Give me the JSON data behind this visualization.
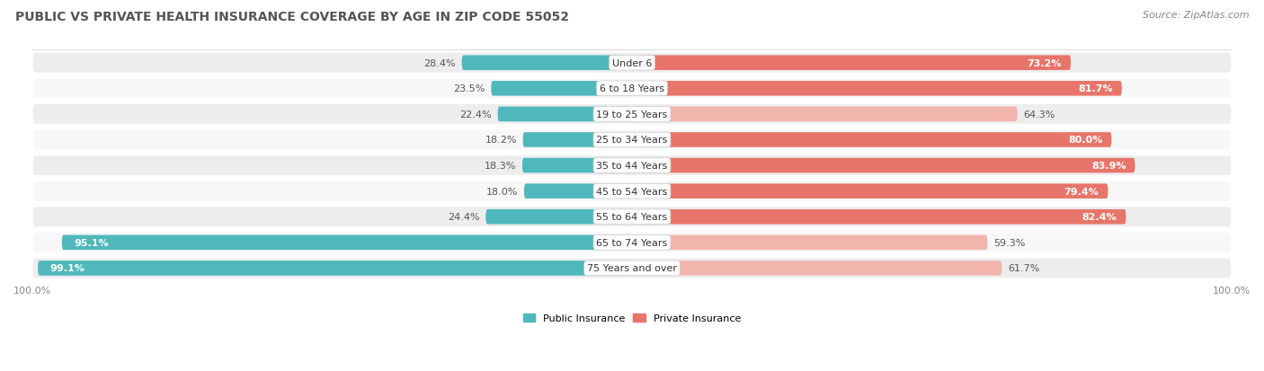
{
  "title": "PUBLIC VS PRIVATE HEALTH INSURANCE COVERAGE BY AGE IN ZIP CODE 55052",
  "source": "Source: ZipAtlas.com",
  "categories": [
    "Under 6",
    "6 to 18 Years",
    "19 to 25 Years",
    "25 to 34 Years",
    "35 to 44 Years",
    "45 to 54 Years",
    "55 to 64 Years",
    "65 to 74 Years",
    "75 Years and over"
  ],
  "public_values": [
    28.4,
    23.5,
    22.4,
    18.2,
    18.3,
    18.0,
    24.4,
    95.1,
    99.1
  ],
  "private_values": [
    73.2,
    81.7,
    64.3,
    80.0,
    83.9,
    79.4,
    82.4,
    59.3,
    61.7
  ],
  "public_color_strong": "#4fb8bc",
  "public_color_light": "#a8dadc",
  "private_color_strong": "#e8756a",
  "private_color_light": "#f2b5ae",
  "row_bg_even": "#ededee",
  "row_bg_odd": "#f7f7f7",
  "label_white": "#ffffff",
  "label_dark": "#555555",
  "legend_public": "Public Insurance",
  "legend_private": "Private Insurance",
  "max_value": 100.0,
  "public_strong_threshold": 50.0,
  "private_strong_threshold": 65.0,
  "title_fontsize": 10,
  "source_fontsize": 8,
  "value_fontsize": 8,
  "category_fontsize": 8
}
